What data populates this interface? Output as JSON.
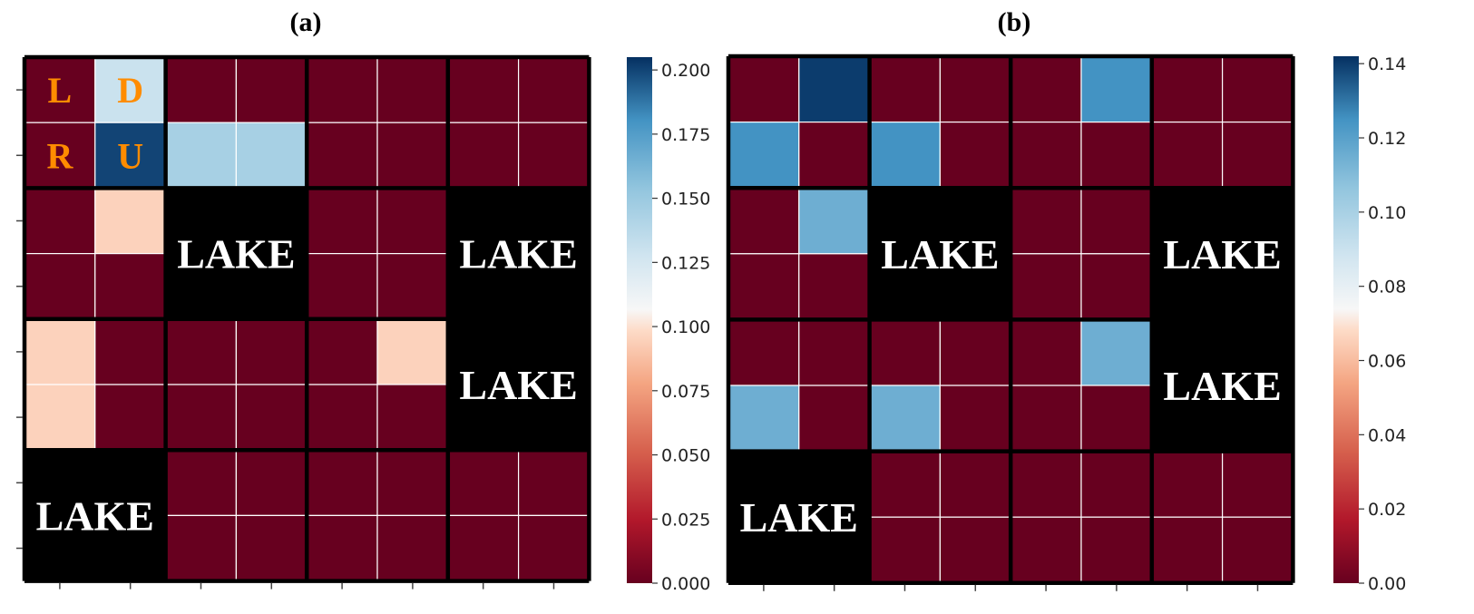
{
  "chart_data": [
    {
      "type": "heatmap",
      "title": "(a)",
      "grid": {
        "rows": 8,
        "cols": 8,
        "block_size": 2
      },
      "action_labels": [
        {
          "text": "L",
          "row": 0,
          "col": 0
        },
        {
          "text": "D",
          "row": 0,
          "col": 1
        },
        {
          "text": "R",
          "row": 1,
          "col": 0
        },
        {
          "text": "U",
          "row": 1,
          "col": 1
        }
      ],
      "lakes": [
        {
          "text": "LAKE",
          "block_row": 1,
          "block_col": 1
        },
        {
          "text": "LAKE",
          "block_row": 1,
          "block_col": 3
        },
        {
          "text": "LAKE",
          "block_row": 2,
          "block_col": 3
        },
        {
          "text": "LAKE",
          "block_row": 3,
          "block_col": 0
        }
      ],
      "values": [
        [
          0.0,
          0.13,
          0.0,
          0.0,
          0.0,
          0.0,
          0.0,
          0.0
        ],
        [
          0.0,
          0.2,
          0.145,
          0.145,
          0.0,
          0.0,
          0.0,
          0.0
        ],
        [
          0.0,
          0.095,
          null,
          null,
          0.0,
          0.0,
          null,
          null
        ],
        [
          0.0,
          0.0,
          null,
          null,
          0.0,
          0.0,
          null,
          null
        ],
        [
          0.095,
          0.0,
          0.0,
          0.0,
          0.0,
          0.095,
          null,
          null
        ],
        [
          0.095,
          0.0,
          0.0,
          0.0,
          0.0,
          0.0,
          null,
          null
        ],
        [
          null,
          null,
          0.0,
          0.0,
          0.0,
          0.0,
          0.0,
          0.0
        ],
        [
          null,
          null,
          0.0,
          0.0,
          0.0,
          0.0,
          0.0,
          0.0
        ]
      ],
      "colorbar": {
        "min": 0.0,
        "max": 0.205,
        "ticks": [
          "0.000",
          "0.025",
          "0.050",
          "0.075",
          "0.100",
          "0.125",
          "0.150",
          "0.175",
          "0.200"
        ]
      }
    },
    {
      "type": "heatmap",
      "title": "(b)",
      "grid": {
        "rows": 8,
        "cols": 8,
        "block_size": 2
      },
      "lakes": [
        {
          "text": "LAKE",
          "block_row": 1,
          "block_col": 1
        },
        {
          "text": "LAKE",
          "block_row": 1,
          "block_col": 3
        },
        {
          "text": "LAKE",
          "block_row": 2,
          "block_col": 3
        },
        {
          "text": "LAKE",
          "block_row": 3,
          "block_col": 0
        }
      ],
      "values": [
        [
          0.0,
          0.14,
          0.0,
          0.0,
          0.0,
          0.125,
          0.0,
          0.0
        ],
        [
          0.125,
          0.0,
          0.125,
          0.0,
          0.0,
          0.0,
          0.0,
          0.0
        ],
        [
          0.0,
          0.115,
          null,
          null,
          0.0,
          0.0,
          null,
          null
        ],
        [
          0.0,
          0.0,
          null,
          null,
          0.0,
          0.0,
          null,
          null
        ],
        [
          0.0,
          0.0,
          0.0,
          0.0,
          0.0,
          0.115,
          null,
          null
        ],
        [
          0.115,
          0.0,
          0.115,
          0.0,
          0.0,
          0.0,
          null,
          null
        ],
        [
          null,
          null,
          0.0,
          0.0,
          0.0,
          0.0,
          0.0,
          0.0
        ],
        [
          null,
          null,
          0.0,
          0.0,
          0.0,
          0.0,
          0.0,
          0.0
        ]
      ],
      "colorbar": {
        "min": 0.0,
        "max": 0.142,
        "ticks": [
          "0.00",
          "0.02",
          "0.04",
          "0.06",
          "0.08",
          "0.10",
          "0.12",
          "0.14"
        ]
      }
    }
  ]
}
